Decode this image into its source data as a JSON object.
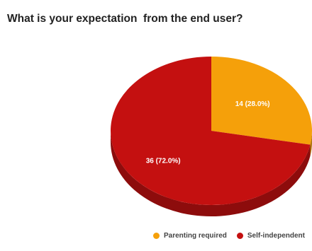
{
  "chart_data": {
    "type": "pie",
    "title": "What is your expectation  from the end user?",
    "slices": [
      {
        "name": "Parenting required",
        "value": 14,
        "percent": 28.0,
        "label": "14 (28.0%)",
        "color": "#F5A00A"
      },
      {
        "name": "Self-independent",
        "value": 36,
        "percent": 72.0,
        "label": "36 (72.0%)",
        "color": "#C41010"
      }
    ],
    "style": "3d",
    "legend_position": "bottom-right"
  }
}
